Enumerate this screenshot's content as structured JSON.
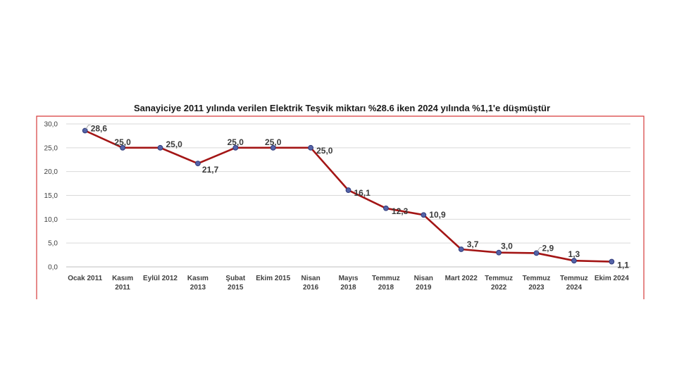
{
  "chart_data": {
    "type": "line",
    "title": "Sanayiciye 2011 yılında verilen Elektrik Teşvik miktarı %28.6 iken 2024 yılında %1,1'e düşmüştür",
    "xlabel": "",
    "ylabel": "",
    "ylim": [
      0,
      30
    ],
    "yticks": [
      "0,0",
      "5,0",
      "10,0",
      "15,0",
      "20,0",
      "25,0",
      "30,0"
    ],
    "grid": true,
    "legend": "none",
    "categories": [
      [
        "Ocak 2011"
      ],
      [
        "Kasım",
        "2011"
      ],
      [
        "Eylül 2012"
      ],
      [
        "Kasım",
        "2013"
      ],
      [
        "Şubat",
        "2015"
      ],
      [
        "Ekim 2015"
      ],
      [
        "Nisan",
        "2016"
      ],
      [
        "Mayıs",
        "2018"
      ],
      [
        "Temmuz",
        "2018"
      ],
      [
        "Nisan",
        "2019"
      ],
      [
        "Mart 2022"
      ],
      [
        "Temmuz",
        "2022"
      ],
      [
        "Temmuz",
        "2023"
      ],
      [
        "Temmuz",
        "2024"
      ],
      [
        "Ekim 2024"
      ]
    ],
    "values": [
      28.6,
      25.0,
      25.0,
      21.7,
      25.0,
      25.0,
      25.0,
      16.1,
      12.3,
      10.9,
      3.7,
      3.0,
      2.9,
      1.3,
      1.1
    ],
    "value_labels": [
      "28,6",
      "25,0",
      "25,0",
      "21,7",
      "25,0",
      "25,0",
      "25,0",
      "16,1",
      "12,3",
      "10,9",
      "3,7",
      "3,0",
      "2,9",
      "1,3",
      "1,1"
    ],
    "colors": {
      "line": "#a31515",
      "marker_fill": "#5563a8",
      "marker_stroke": "#2f3a7a",
      "grid": "#d9d9d9",
      "frame": "#d63b3b"
    }
  }
}
